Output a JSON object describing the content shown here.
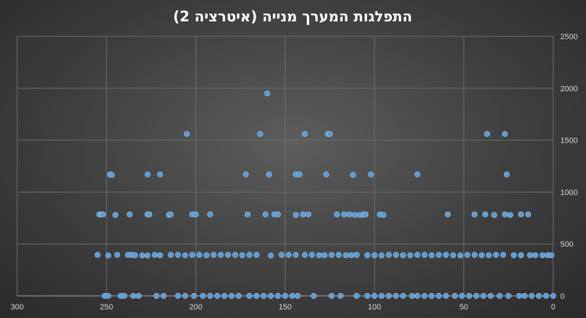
{
  "chart_data": {
    "type": "scatter",
    "title": "התפלגות המערך מנייה (איטרציה 2)",
    "xlabel": "",
    "ylabel": "",
    "x_reversed": true,
    "y_axis_position": "right",
    "xlim": [
      0,
      300
    ],
    "ylim": [
      0,
      2500
    ],
    "x_ticks": [
      300,
      250,
      200,
      150,
      100,
      50,
      0
    ],
    "y_ticks": [
      0,
      500,
      1000,
      1500,
      2000,
      2500
    ],
    "grid": true,
    "colors": {
      "point": "#5b9bd5",
      "grid": "#6e6e6e",
      "text": "#d9d9d9"
    },
    "series": [
      {
        "values": [
          [
            160,
            1950
          ],
          [
            205,
            1560
          ],
          [
            164,
            1560
          ],
          [
            139,
            1560
          ],
          [
            126,
            1560
          ],
          [
            125,
            1560
          ],
          [
            37,
            1560
          ],
          [
            27,
            1560
          ],
          [
            248,
            1170
          ],
          [
            247,
            1165
          ],
          [
            227,
            1170
          ],
          [
            220,
            1170
          ],
          [
            172,
            1170
          ],
          [
            159,
            1170
          ],
          [
            144,
            1170
          ],
          [
            142,
            1170
          ],
          [
            127,
            1170
          ],
          [
            112,
            1165
          ],
          [
            102,
            1170
          ],
          [
            76,
            1170
          ],
          [
            26,
            1170
          ],
          [
            254,
            785
          ],
          [
            253,
            785
          ],
          [
            252,
            785
          ],
          [
            245,
            780
          ],
          [
            237,
            785
          ],
          [
            227,
            785
          ],
          [
            226,
            785
          ],
          [
            215,
            780
          ],
          [
            214,
            785
          ],
          [
            202,
            785
          ],
          [
            200,
            785
          ],
          [
            192,
            785
          ],
          [
            171,
            785
          ],
          [
            161,
            785
          ],
          [
            156,
            785
          ],
          [
            154,
            785
          ],
          [
            144,
            780
          ],
          [
            140,
            785
          ],
          [
            137,
            785
          ],
          [
            121,
            785
          ],
          [
            117,
            785
          ],
          [
            114,
            785
          ],
          [
            111,
            780
          ],
          [
            108,
            780
          ],
          [
            106,
            785
          ],
          [
            105,
            785
          ],
          [
            97,
            785
          ],
          [
            95,
            780
          ],
          [
            59,
            785
          ],
          [
            44,
            785
          ],
          [
            38,
            785
          ],
          [
            33,
            780
          ],
          [
            27,
            785
          ],
          [
            24,
            780
          ],
          [
            18,
            785
          ],
          [
            14,
            785
          ],
          [
            255,
            395
          ],
          [
            249,
            390
          ],
          [
            244,
            395
          ],
          [
            238,
            395
          ],
          [
            236,
            395
          ],
          [
            234,
            392
          ],
          [
            230,
            390
          ],
          [
            227,
            390
          ],
          [
            223,
            395
          ],
          [
            220,
            392
          ],
          [
            214,
            395
          ],
          [
            210,
            395
          ],
          [
            206,
            392
          ],
          [
            202,
            395
          ],
          [
            198,
            395
          ],
          [
            194,
            392
          ],
          [
            190,
            395
          ],
          [
            186,
            395
          ],
          [
            182,
            395
          ],
          [
            178,
            395
          ],
          [
            174,
            392
          ],
          [
            170,
            395
          ],
          [
            166,
            395
          ],
          [
            158,
            390
          ],
          [
            152,
            395
          ],
          [
            148,
            395
          ],
          [
            144,
            395
          ],
          [
            139,
            395
          ],
          [
            135,
            395
          ],
          [
            131,
            392
          ],
          [
            128,
            392
          ],
          [
            124,
            395
          ],
          [
            120,
            395
          ],
          [
            116,
            392
          ],
          [
            113,
            392
          ],
          [
            110,
            395
          ],
          [
            104,
            392
          ],
          [
            100,
            392
          ],
          [
            96,
            390
          ],
          [
            92,
            395
          ],
          [
            88,
            395
          ],
          [
            84,
            392
          ],
          [
            80,
            392
          ],
          [
            76,
            395
          ],
          [
            72,
            395
          ],
          [
            68,
            392
          ],
          [
            64,
            395
          ],
          [
            60,
            395
          ],
          [
            56,
            392
          ],
          [
            52,
            390
          ],
          [
            48,
            395
          ],
          [
            44,
            395
          ],
          [
            40,
            392
          ],
          [
            36,
            392
          ],
          [
            32,
            395
          ],
          [
            28,
            395
          ],
          [
            22,
            392
          ],
          [
            18,
            392
          ],
          [
            13,
            392
          ],
          [
            10,
            392
          ],
          [
            6,
            392
          ],
          [
            3,
            392
          ],
          [
            1,
            392
          ],
          [
            251,
            0
          ],
          [
            249,
            0
          ],
          [
            242,
            0
          ],
          [
            240,
            0
          ],
          [
            235,
            0
          ],
          [
            232,
            0
          ],
          [
            222,
            0
          ],
          [
            218,
            0
          ],
          [
            210,
            0
          ],
          [
            206,
            0
          ],
          [
            201,
            0
          ],
          [
            196,
            0
          ],
          [
            192,
            0
          ],
          [
            188,
            0
          ],
          [
            184,
            0
          ],
          [
            180,
            0
          ],
          [
            176,
            0
          ],
          [
            170,
            0
          ],
          [
            166,
            0
          ],
          [
            162,
            0
          ],
          [
            158,
            0
          ],
          [
            154,
            0
          ],
          [
            150,
            0
          ],
          [
            146,
            0
          ],
          [
            143,
            0
          ],
          [
            134,
            0
          ],
          [
            124,
            0
          ],
          [
            119,
            0
          ],
          [
            110,
            0
          ],
          [
            104,
            0
          ],
          [
            100,
            0
          ],
          [
            96,
            0
          ],
          [
            92,
            0
          ],
          [
            88,
            0
          ],
          [
            84,
            0
          ],
          [
            79,
            0
          ],
          [
            76,
            0
          ],
          [
            72,
            0
          ],
          [
            68,
            0
          ],
          [
            64,
            0
          ],
          [
            60,
            0
          ],
          [
            55,
            0
          ],
          [
            51,
            0
          ],
          [
            47,
            0
          ],
          [
            43,
            0
          ],
          [
            39,
            0
          ],
          [
            35,
            0
          ],
          [
            30,
            0
          ],
          [
            25,
            0
          ],
          [
            19,
            0
          ],
          [
            16,
            0
          ],
          [
            12,
            0
          ],
          [
            8,
            0
          ],
          [
            4,
            0
          ],
          [
            0,
            0
          ]
        ]
      }
    ]
  }
}
